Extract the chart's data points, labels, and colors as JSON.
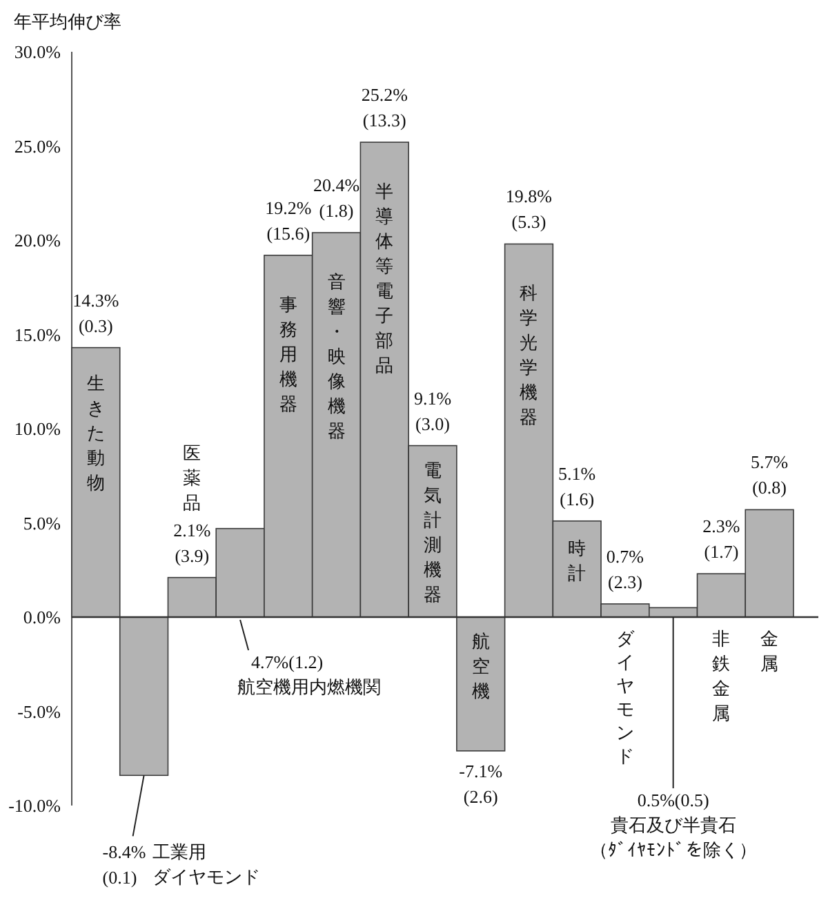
{
  "chart_data": {
    "type": "bar",
    "ylabel": "年平均伸び率",
    "categories": [
      null,
      null,
      null,
      null,
      null,
      null,
      null,
      null,
      null,
      null,
      null,
      null,
      null,
      null,
      null
    ],
    "series": [
      {
        "color": "#b3b3b3",
        "values": [
          14.3,
          -8.4,
          2.1,
          4.7,
          19.2,
          20.4,
          25.2,
          9.1,
          -7.1,
          19.8,
          5.1,
          0.7,
          0.5,
          2.3,
          5.7
        ],
        "value_labels": [
          "14.3%\n(0.3)",
          "-8.4%\n(0.1)",
          "2.1%\n(3.9)",
          "4.7%(1.2)",
          "19.2%(15.6)",
          "20.4%\n(1.8)",
          "25.2%(13.3)",
          "9.1%\n(3.0)",
          "-7.1%\n(2.6)",
          "19.8%\n(5.3)",
          "5.1%\n(1.6)",
          "0.7%\n(2.3)",
          "0.5%(0.5)",
          "2.3%\n(1.7)",
          "5.7%\n(0.8)"
        ]
      }
    ],
    "annotations": [
      "生きた動物",
      "工業用ダイヤモンド",
      "医薬品",
      "航空機用内燃機関",
      "事務用機器",
      "音響・映像機器",
      "半導体等電子部品",
      "電気計測機器",
      "航空機",
      "科学光学機器",
      "時計",
      "ダイヤモンド",
      "貴石及び半貴石（ﾀﾞｲﾔﾓﾝﾄﾞを除く）",
      "非鉄金属",
      "金属"
    ],
    "ylim": [
      -10,
      30
    ],
    "tick_labels": "y",
    "yticks": [
      {
        "value": -10,
        "label": "-10.0%"
      },
      {
        "value": -5,
        "label": "-5.0%"
      },
      {
        "value": 0,
        "label": "0.0%"
      },
      {
        "value": 5,
        "label": "5.0%"
      },
      {
        "value": 10,
        "label": "10.0%"
      },
      {
        "value": 15,
        "label": "15.0%"
      },
      {
        "value": 20,
        "label": "20.0%"
      },
      {
        "value": 25,
        "label": "25.0%"
      },
      {
        "value": 30,
        "label": "30.0%"
      }
    ]
  }
}
